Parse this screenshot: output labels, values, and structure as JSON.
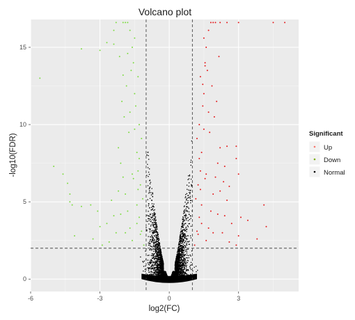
{
  "chart_data": {
    "type": "scatter",
    "title": "Volcano plot",
    "xlabel": "log2(FC)",
    "ylabel": "-log10(FDR)",
    "xlim": [
      -6,
      5.6
    ],
    "ylim": [
      -0.8,
      16.8
    ],
    "x_ticks": [
      -6,
      -3,
      0,
      3
    ],
    "y_ticks": [
      0,
      5,
      10,
      15
    ],
    "grid": true,
    "threshold_lines": {
      "fc": [
        -1,
        1
      ],
      "fdr": 2
    },
    "legend": {
      "title": "Significant",
      "position": "right",
      "entries": [
        {
          "label": "Up",
          "color": "#f8766d"
        },
        {
          "label": "Down",
          "color": "#7cae00"
        },
        {
          "label": "Normal",
          "color": "#000000"
        }
      ]
    },
    "series": [
      {
        "name": "Up",
        "color": "#e41a1c",
        "points": [
          [
            1.1,
            2.2
          ],
          [
            1.2,
            3.1
          ],
          [
            1.3,
            4.0
          ],
          [
            1.15,
            5.2
          ],
          [
            1.25,
            6.1
          ],
          [
            1.35,
            7.0
          ],
          [
            1.4,
            8.2
          ],
          [
            1.2,
            9.1
          ],
          [
            1.3,
            10.0
          ],
          [
            1.45,
            11.2
          ],
          [
            1.5,
            12.0
          ],
          [
            1.35,
            13.1
          ],
          [
            1.55,
            14.0
          ],
          [
            1.6,
            15.0
          ],
          [
            1.7,
            16.1
          ],
          [
            1.8,
            16.6
          ],
          [
            1.9,
            16.6
          ],
          [
            2.0,
            16.6
          ],
          [
            2.2,
            16.6
          ],
          [
            2.5,
            16.6
          ],
          [
            3.0,
            16.6
          ],
          [
            4.5,
            16.6
          ],
          [
            5.0,
            16.6
          ],
          [
            1.6,
            2.5
          ],
          [
            1.7,
            3.3
          ],
          [
            1.8,
            4.4
          ],
          [
            1.9,
            5.5
          ],
          [
            2.0,
            6.6
          ],
          [
            2.1,
            7.5
          ],
          [
            2.2,
            8.5
          ],
          [
            1.75,
            9.5
          ],
          [
            1.95,
            10.5
          ],
          [
            2.05,
            11.5
          ],
          [
            1.85,
            12.5
          ],
          [
            1.65,
            13.5
          ],
          [
            2.15,
            14.4
          ],
          [
            1.5,
            15.6
          ],
          [
            2.3,
            3.0
          ],
          [
            2.4,
            4.1
          ],
          [
            2.5,
            5.1
          ],
          [
            2.35,
            6.3
          ],
          [
            2.6,
            2.4
          ],
          [
            2.7,
            3.6
          ],
          [
            2.9,
            2.2
          ],
          [
            3.0,
            2.8
          ],
          [
            2.9,
            8.6
          ],
          [
            2.9,
            7.8
          ],
          [
            3.0,
            6.8
          ],
          [
            3.1,
            4.0
          ],
          [
            2.5,
            8.6
          ],
          [
            2.4,
            7.3
          ],
          [
            2.6,
            6.0
          ],
          [
            3.4,
            3.8
          ],
          [
            4.1,
            4.8
          ],
          [
            4.2,
            3.4
          ],
          [
            3.8,
            2.6
          ],
          [
            2.2,
            5.7
          ],
          [
            2.1,
            4.2
          ],
          [
            1.9,
            3.0
          ],
          [
            1.4,
            4.8
          ],
          [
            1.6,
            6.8
          ],
          [
            1.3,
            7.8
          ],
          [
            1.5,
            9.7
          ],
          [
            1.7,
            10.8
          ],
          [
            1.45,
            12.6
          ],
          [
            1.55,
            13.8
          ],
          [
            1.25,
            2.9
          ],
          [
            1.4,
            3.6
          ],
          [
            1.35,
            5.8
          ],
          [
            1.55,
            6.5
          ]
        ]
      },
      {
        "name": "Down",
        "color": "#7ddc42",
        "points": [
          [
            -1.1,
            2.2
          ],
          [
            -1.2,
            3.1
          ],
          [
            -1.3,
            4.0
          ],
          [
            -1.15,
            5.2
          ],
          [
            -1.25,
            6.1
          ],
          [
            -1.35,
            7.0
          ],
          [
            -1.4,
            8.2
          ],
          [
            -1.2,
            9.1
          ],
          [
            -1.3,
            10.0
          ],
          [
            -1.45,
            11.2
          ],
          [
            -1.5,
            12.0
          ],
          [
            -1.35,
            13.1
          ],
          [
            -1.55,
            14.0
          ],
          [
            -1.6,
            15.0
          ],
          [
            -1.7,
            16.1
          ],
          [
            -1.8,
            16.6
          ],
          [
            -1.9,
            16.6
          ],
          [
            -2.0,
            16.6
          ],
          [
            -2.3,
            16.6
          ],
          [
            -1.6,
            2.5
          ],
          [
            -1.7,
            3.3
          ],
          [
            -1.8,
            4.4
          ],
          [
            -1.9,
            5.5
          ],
          [
            -2.0,
            6.6
          ],
          [
            -2.1,
            7.5
          ],
          [
            -2.2,
            8.5
          ],
          [
            -1.75,
            9.5
          ],
          [
            -1.95,
            10.5
          ],
          [
            -2.05,
            11.5
          ],
          [
            -1.85,
            12.5
          ],
          [
            -1.65,
            13.5
          ],
          [
            -2.15,
            14.4
          ],
          [
            -1.5,
            15.6
          ],
          [
            -2.3,
            3.0
          ],
          [
            -2.4,
            4.1
          ],
          [
            -2.5,
            5.1
          ],
          [
            -2.6,
            2.4
          ],
          [
            -2.7,
            3.6
          ],
          [
            -2.9,
            2.2
          ],
          [
            -3.0,
            3.4
          ],
          [
            -3.1,
            4.4
          ],
          [
            -3.4,
            4.8
          ],
          [
            -3.3,
            2.6
          ],
          [
            -2.2,
            5.7
          ],
          [
            -2.1,
            4.2
          ],
          [
            -1.9,
            3.0
          ],
          [
            -1.4,
            4.8
          ],
          [
            -1.6,
            6.8
          ],
          [
            -1.3,
            7.8
          ],
          [
            -1.5,
            9.7
          ],
          [
            -1.7,
            10.8
          ],
          [
            -2.4,
            16.1
          ],
          [
            -2.4,
            15.2
          ],
          [
            -2.7,
            15.3
          ],
          [
            -3.0,
            14.8
          ],
          [
            -3.8,
            14.9
          ],
          [
            -5.6,
            13.0
          ],
          [
            -4.6,
            6.8
          ],
          [
            -4.4,
            6.2
          ],
          [
            -5.0,
            7.3
          ],
          [
            -4.3,
            5.5
          ],
          [
            -4.2,
            4.8
          ],
          [
            -4.3,
            5.0
          ],
          [
            -4.1,
            2.8
          ],
          [
            -3.8,
            4.7
          ],
          [
            -2.0,
            13.2
          ],
          [
            -1.8,
            14.6
          ],
          [
            -1.25,
            2.9
          ],
          [
            -1.4,
            3.6
          ],
          [
            -1.35,
            5.8
          ],
          [
            -1.55,
            6.5
          ]
        ]
      }
    ]
  }
}
